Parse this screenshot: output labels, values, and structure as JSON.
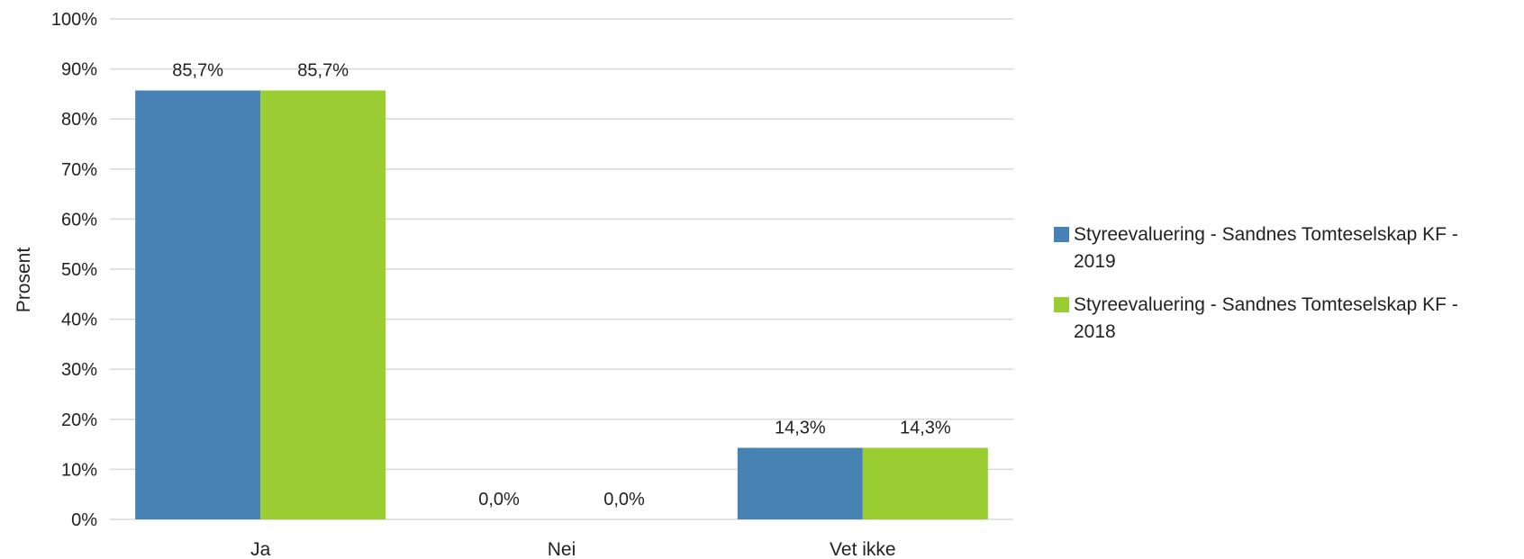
{
  "chart_data": {
    "type": "bar",
    "categories": [
      "Ja",
      "Nei",
      "Vet ikke"
    ],
    "series": [
      {
        "name": "Styreevaluering - Sandnes Tomteselskap KF - 2019",
        "values": [
          85.7,
          0.0,
          14.3
        ],
        "labels": [
          "85,7%",
          "0,0%",
          "14,3%"
        ],
        "color": "#4682b4"
      },
      {
        "name": "Styreevaluering - Sandnes Tomteselskap KF - 2018",
        "values": [
          85.7,
          0.0,
          14.3
        ],
        "labels": [
          "85,7%",
          "0,0%",
          "14,3%"
        ],
        "color": "#9acd32"
      }
    ],
    "ylabel": "Prosent",
    "xlabel": "",
    "ylim": [
      0,
      100
    ],
    "yticks": [
      "0%",
      "10%",
      "20%",
      "30%",
      "40%",
      "50%",
      "60%",
      "70%",
      "80%",
      "90%",
      "100%"
    ],
    "grid": true,
    "legend_position": "right",
    "gridline_color": "#d9d9d9"
  }
}
